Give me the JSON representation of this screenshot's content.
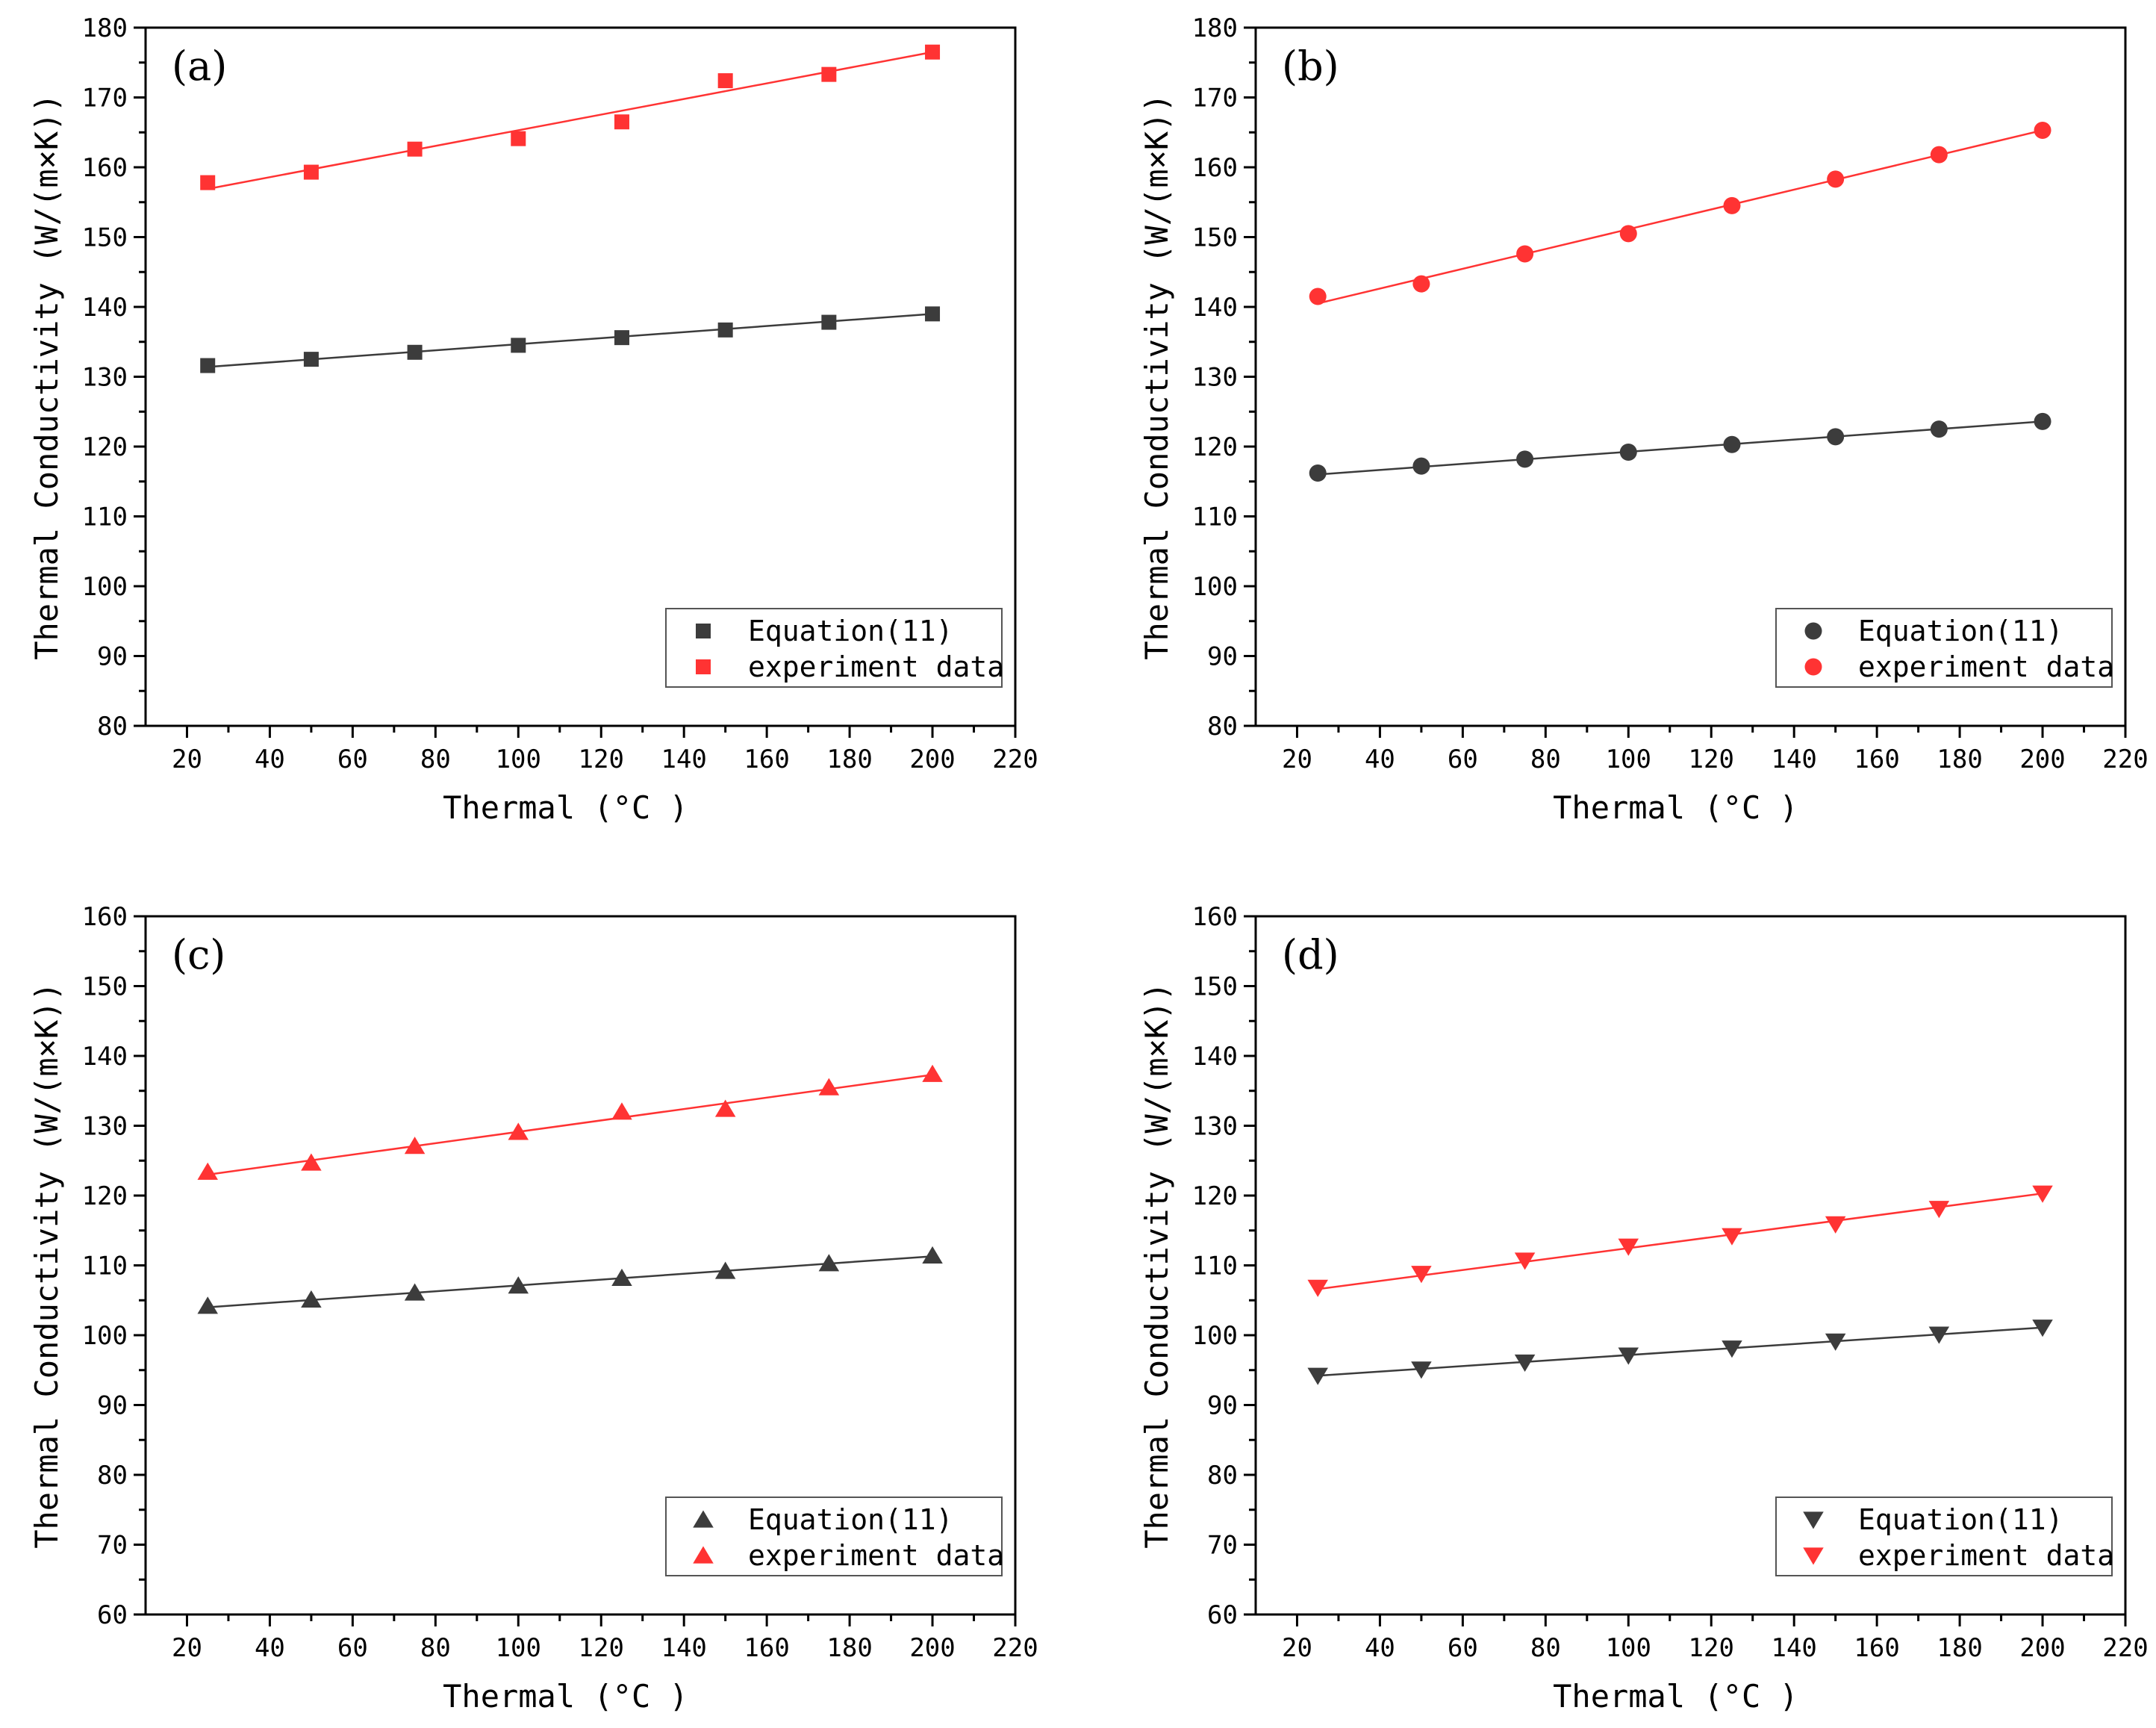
{
  "colors": {
    "equation": "#3c3c3c",
    "experiment": "#ff3333",
    "axis": "#000000",
    "legend_border": "#555555"
  },
  "chart_data": [
    {
      "panel": "(a)",
      "type": "scatter",
      "marker": "square",
      "xlabel": "Thermal (°C )",
      "ylabel": "Thermal Conductivity (W/(m×K))",
      "xlim": [
        10,
        220
      ],
      "ylim": [
        80,
        180
      ],
      "xticks": [
        20,
        40,
        60,
        80,
        100,
        120,
        140,
        160,
        180,
        200,
        220
      ],
      "yticks": [
        80,
        90,
        100,
        110,
        120,
        130,
        140,
        150,
        160,
        170,
        180
      ],
      "x": [
        25,
        50,
        75,
        100,
        125,
        150,
        175,
        200
      ],
      "legend_position": "bottom-right",
      "series": [
        {
          "name": "Equation(11)",
          "color": "#3c3c3c",
          "values": [
            131.6,
            132.5,
            133.5,
            134.5,
            135.6,
            136.7,
            137.8,
            139.0
          ],
          "fit": [
            131.4,
            139.0
          ]
        },
        {
          "name": "experiment data",
          "color": "#ff3333",
          "values": [
            157.8,
            159.3,
            162.6,
            164.1,
            166.5,
            172.4,
            173.3,
            176.5
          ],
          "fit": [
            156.9,
            176.5
          ]
        }
      ]
    },
    {
      "panel": "(b)",
      "type": "scatter",
      "marker": "circle",
      "xlabel": "Thermal (°C )",
      "ylabel": "Thermal Conductivity (W/(m×K))",
      "xlim": [
        10,
        220
      ],
      "ylim": [
        80,
        180
      ],
      "xticks": [
        20,
        40,
        60,
        80,
        100,
        120,
        140,
        160,
        180,
        200,
        220
      ],
      "yticks": [
        80,
        90,
        100,
        110,
        120,
        130,
        140,
        150,
        160,
        170,
        180
      ],
      "x": [
        25,
        50,
        75,
        100,
        125,
        150,
        175,
        200
      ],
      "legend_position": "bottom-right",
      "series": [
        {
          "name": "Equation(11)",
          "color": "#3c3c3c",
          "values": [
            116.2,
            117.2,
            118.2,
            119.2,
            120.3,
            121.4,
            122.5,
            123.6
          ],
          "fit": [
            116.0,
            123.6
          ]
        },
        {
          "name": "experiment data",
          "color": "#ff3333",
          "values": [
            141.5,
            143.3,
            147.6,
            150.5,
            154.5,
            158.3,
            161.8,
            165.3
          ],
          "fit": [
            140.5,
            165.3
          ]
        }
      ]
    },
    {
      "panel": "(c)",
      "type": "scatter",
      "marker": "triangle-up",
      "xlabel": "Thermal (°C )",
      "ylabel": "Thermal Conductivity (W/(m×K))",
      "xlim": [
        10,
        220
      ],
      "ylim": [
        60,
        160
      ],
      "xticks": [
        20,
        40,
        60,
        80,
        100,
        120,
        140,
        160,
        180,
        200,
        220
      ],
      "yticks": [
        60,
        70,
        80,
        90,
        100,
        110,
        120,
        130,
        140,
        150,
        160
      ],
      "x": [
        25,
        50,
        75,
        100,
        125,
        150,
        175,
        200
      ],
      "legend_position": "bottom-right",
      "series": [
        {
          "name": "Equation(11)",
          "color": "#3c3c3c",
          "values": [
            104.2,
            105.1,
            106.1,
            107.1,
            108.2,
            109.2,
            110.3,
            111.4
          ],
          "fit": [
            104.0,
            111.3
          ]
        },
        {
          "name": "experiment data",
          "color": "#ff3333",
          "values": [
            123.4,
            124.7,
            127.1,
            129.1,
            132.0,
            132.4,
            135.5,
            137.4
          ],
          "fit": [
            123.0,
            137.3
          ]
        }
      ]
    },
    {
      "panel": "(d)",
      "type": "scatter",
      "marker": "triangle-down",
      "xlabel": "Thermal (°C )",
      "ylabel": "Thermal Conductivity (W/(m×K))",
      "xlim": [
        10,
        220
      ],
      "ylim": [
        60,
        160
      ],
      "xticks": [
        20,
        40,
        60,
        80,
        100,
        120,
        140,
        160,
        180,
        200,
        220
      ],
      "yticks": [
        60,
        70,
        80,
        90,
        100,
        110,
        120,
        130,
        140,
        150,
        160
      ],
      "x": [
        25,
        50,
        75,
        100,
        125,
        150,
        175,
        200
      ],
      "legend_position": "bottom-right",
      "series": [
        {
          "name": "Equation(11)",
          "color": "#3c3c3c",
          "values": [
            94.2,
            95.1,
            96.1,
            97.1,
            98.1,
            99.1,
            100.1,
            101.1
          ],
          "fit": [
            94.2,
            101.1
          ]
        },
        {
          "name": "experiment data",
          "color": "#ff3333",
          "values": [
            106.8,
            108.8,
            110.7,
            112.7,
            114.2,
            115.9,
            118.1,
            120.3
          ],
          "fit": [
            106.6,
            120.3
          ]
        }
      ]
    }
  ]
}
